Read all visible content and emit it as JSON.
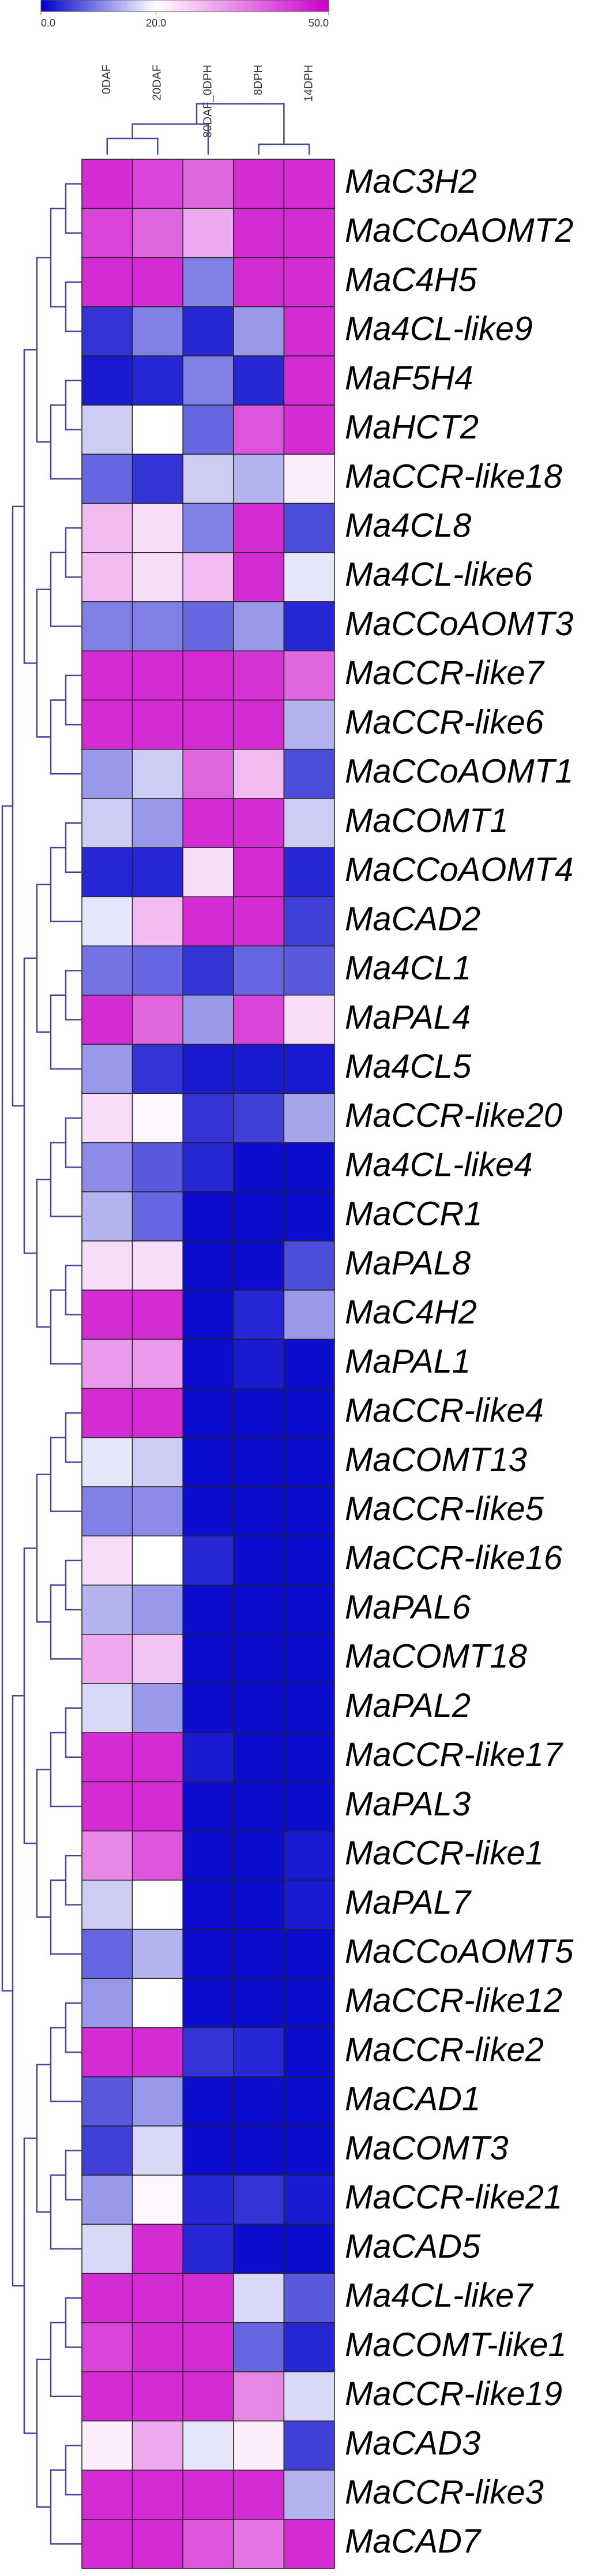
{
  "chart_data": {
    "type": "heatmap",
    "columns": [
      "0DAF",
      "20DAF",
      "80DAF_0DPH",
      "8DPH",
      "14DPH"
    ],
    "rows": [
      "MaC3H2",
      "MaCCoAOMT2",
      "MaC4H5",
      "Ma4CL-like9",
      "MaF5H4",
      "MaHCT2",
      "MaCCR-like18",
      "Ma4CL8",
      "Ma4CL-like6",
      "MaCCoAOMT3",
      "MaCCR-like7",
      "MaCCR-like6",
      "MaCCoAOMT1",
      "MaCOMT1",
      "MaCCoAOMT4",
      "MaCAD2",
      "Ma4CL1",
      "MaPAL4",
      "Ma4CL5",
      "MaCCR-like20",
      "Ma4CL-like4",
      "MaCCR1",
      "MaPAL8",
      "MaC4H2",
      "MaPAL1",
      "MaCCR-like4",
      "MaCOMT13",
      "MaCCR-like5",
      "MaCCR-like16",
      "MaPAL6",
      "MaCOMT18",
      "MaPAL2",
      "MaCCR-like17",
      "MaPAL3",
      "MaCCR-like1",
      "MaPAL7",
      "MaCCoAOMT5",
      "MaCCR-like12",
      "MaCCR-like2",
      "MaCAD1",
      "MaCOMT3",
      "MaCCR-like21",
      "MaCAD5",
      "Ma4CL-like7",
      "MaCOMT-like1",
      "MaCCR-like19",
      "MaCAD3",
      "MaCCR-like3",
      "MaCAD7"
    ],
    "values": [
      [
        45,
        42,
        38,
        45,
        45
      ],
      [
        42,
        38,
        30,
        45,
        45
      ],
      [
        45,
        45,
        10,
        45,
        45
      ],
      [
        4,
        10,
        3,
        12,
        45
      ],
      [
        2,
        3,
        10,
        3,
        45
      ],
      [
        16,
        20,
        8,
        40,
        45
      ],
      [
        8,
        4,
        16,
        14,
        22
      ],
      [
        28,
        24,
        10,
        45,
        6
      ],
      [
        28,
        24,
        28,
        45,
        18
      ],
      [
        10,
        10,
        8,
        12,
        3
      ],
      [
        45,
        45,
        45,
        44,
        38
      ],
      [
        45,
        45,
        45,
        45,
        14
      ],
      [
        12,
        16,
        38,
        28,
        6
      ],
      [
        16,
        12,
        45,
        45,
        16
      ],
      [
        3,
        3,
        24,
        45,
        3
      ],
      [
        18,
        28,
        45,
        45,
        5
      ],
      [
        9,
        8,
        4,
        8,
        7
      ],
      [
        45,
        38,
        12,
        42,
        24
      ],
      [
        12,
        4,
        2,
        2,
        2
      ],
      [
        24,
        21,
        4,
        5,
        13
      ],
      [
        11,
        7,
        3,
        1,
        1
      ],
      [
        14,
        8,
        1,
        1,
        1
      ],
      [
        24,
        24,
        1,
        1,
        6
      ],
      [
        45,
        45,
        1,
        3,
        12
      ],
      [
        32,
        32,
        1,
        2,
        1
      ],
      [
        45,
        45,
        1,
        1,
        1
      ],
      [
        18,
        16,
        1,
        1,
        1
      ],
      [
        10,
        11,
        1,
        1,
        1
      ],
      [
        24,
        20,
        3,
        1,
        1
      ],
      [
        14,
        12,
        1,
        1,
        1
      ],
      [
        30,
        27,
        1,
        1,
        1
      ],
      [
        17,
        12,
        1,
        1,
        1
      ],
      [
        45,
        45,
        2,
        1,
        1
      ],
      [
        45,
        45,
        1,
        1,
        1
      ],
      [
        34,
        40,
        1,
        1,
        2
      ],
      [
        16,
        20,
        1,
        1,
        2
      ],
      [
        8,
        14,
        1,
        1,
        1
      ],
      [
        12,
        20,
        1,
        1,
        1
      ],
      [
        45,
        45,
        4,
        3,
        1
      ],
      [
        7,
        12,
        1,
        1,
        1
      ],
      [
        5,
        17,
        1,
        1,
        1
      ],
      [
        12,
        21,
        3,
        4,
        2
      ],
      [
        17,
        45,
        3,
        1,
        1
      ],
      [
        45,
        45,
        45,
        17,
        7
      ],
      [
        42,
        45,
        45,
        8,
        3
      ],
      [
        45,
        45,
        45,
        34,
        17
      ],
      [
        22,
        30,
        18,
        22,
        5
      ],
      [
        45,
        45,
        45,
        45,
        14
      ],
      [
        45,
        45,
        40,
        36,
        45
      ]
    ],
    "zlim": [
      0,
      50
    ],
    "zticks": [
      {
        "value": 0,
        "label": "0.0"
      },
      {
        "value": 20,
        "label": "20.0"
      },
      {
        "value": 50,
        "label": "50.0"
      }
    ],
    "colors": [
      "#0000cc",
      "#ffffff",
      "#cc00cc"
    ]
  }
}
